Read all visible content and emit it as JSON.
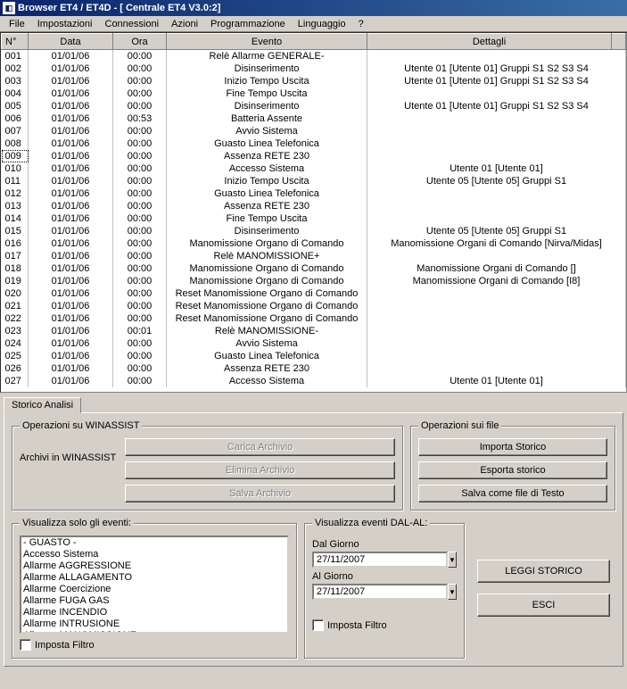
{
  "title": "Browser ET4 / ET4D - [      Centrale   ET4      V3.0:2]",
  "menu": [
    "File",
    "Impostazioni",
    "Connessioni",
    "Azioni",
    "Programmazione",
    "Linguaggio",
    "?"
  ],
  "columns": {
    "n": "N°",
    "data": "Data",
    "ora": "Ora",
    "evento": "Evento",
    "dettagli": "Dettagli"
  },
  "rows": [
    {
      "n": "001",
      "d": "01/01/06",
      "o": "00:00",
      "e": "Relè Allarme GENERALE-",
      "x": ""
    },
    {
      "n": "002",
      "d": "01/01/06",
      "o": "00:00",
      "e": "Disinserimento",
      "x": "Utente 01 [Utente      01] Gruppi S1  S2  S3  S4"
    },
    {
      "n": "003",
      "d": "01/01/06",
      "o": "00:00",
      "e": "Inizio Tempo Uscita",
      "x": "Utente 01 [Utente      01] Gruppi S1  S2  S3  S4"
    },
    {
      "n": "004",
      "d": "01/01/06",
      "o": "00:00",
      "e": "Fine Tempo Uscita",
      "x": ""
    },
    {
      "n": "005",
      "d": "01/01/06",
      "o": "00:00",
      "e": "Disinserimento",
      "x": "Utente 01 [Utente      01] Gruppi S1  S2  S3  S4"
    },
    {
      "n": "006",
      "d": "01/01/06",
      "o": "00:53",
      "e": "Batteria Assente",
      "x": ""
    },
    {
      "n": "007",
      "d": "01/01/06",
      "o": "00:00",
      "e": "Avvio Sistema",
      "x": ""
    },
    {
      "n": "008",
      "d": "01/01/06",
      "o": "00:00",
      "e": "Guasto Linea Telefonica",
      "x": ""
    },
    {
      "n": "009",
      "d": "01/01/06",
      "o": "00:00",
      "e": "Assenza RETE 230",
      "x": "",
      "dotted": true
    },
    {
      "n": "010",
      "d": "01/01/06",
      "o": "00:00",
      "e": "Accesso Sistema",
      "x": "Utente 01 [Utente      01]"
    },
    {
      "n": "011",
      "d": "01/01/06",
      "o": "00:00",
      "e": "Inizio Tempo Uscita",
      "x": "Utente 05 [Utente      05] Gruppi S1"
    },
    {
      "n": "012",
      "d": "01/01/06",
      "o": "00:00",
      "e": "Guasto Linea Telefonica",
      "x": ""
    },
    {
      "n": "013",
      "d": "01/01/06",
      "o": "00:00",
      "e": "Assenza RETE 230",
      "x": ""
    },
    {
      "n": "014",
      "d": "01/01/06",
      "o": "00:00",
      "e": "Fine Tempo Uscita",
      "x": ""
    },
    {
      "n": "015",
      "d": "01/01/06",
      "o": "00:00",
      "e": "Disinserimento",
      "x": "Utente 05 [Utente      05] Gruppi S1"
    },
    {
      "n": "016",
      "d": "01/01/06",
      "o": "00:00",
      "e": "Manomissione Organo di Comando",
      "x": "Manomissione Organi di Comando  [Nirva/Midas]"
    },
    {
      "n": "017",
      "d": "01/01/06",
      "o": "00:00",
      "e": "Relè MANOMISSIONE+",
      "x": ""
    },
    {
      "n": "018",
      "d": "01/01/06",
      "o": "00:00",
      "e": "Manomissione Organo di Comando",
      "x": "Manomissione Organi di Comando  []"
    },
    {
      "n": "019",
      "d": "01/01/06",
      "o": "00:00",
      "e": "Manomissione Organo di Comando",
      "x": "Manomissione Organi di Comando  [I8]"
    },
    {
      "n": "020",
      "d": "01/01/06",
      "o": "00:00",
      "e": "Reset Manomissione Organo di Comando",
      "x": ""
    },
    {
      "n": "021",
      "d": "01/01/06",
      "o": "00:00",
      "e": "Reset Manomissione Organo di Comando",
      "x": ""
    },
    {
      "n": "022",
      "d": "01/01/06",
      "o": "00:00",
      "e": "Reset Manomissione Organo di Comando",
      "x": ""
    },
    {
      "n": "023",
      "d": "01/01/06",
      "o": "00:01",
      "e": "Relè MANOMISSIONE-",
      "x": ""
    },
    {
      "n": "024",
      "d": "01/01/06",
      "o": "00:00",
      "e": "Avvio Sistema",
      "x": ""
    },
    {
      "n": "025",
      "d": "01/01/06",
      "o": "00:00",
      "e": "Guasto Linea Telefonica",
      "x": ""
    },
    {
      "n": "026",
      "d": "01/01/06",
      "o": "00:00",
      "e": "Assenza RETE 230",
      "x": ""
    },
    {
      "n": "027",
      "d": "01/01/06",
      "o": "00:00",
      "e": "Accesso Sistema",
      "x": "Utente 01 [Utente      01]"
    }
  ],
  "tab": "Storico Analisi",
  "ops_winassist": {
    "legend": "Operazioni su WINASSIST",
    "archivi": "Archivi in WINASSIST",
    "carica": "Carica Archivio",
    "elimina": "Elimina Archivio",
    "salva": "Salva Archivio"
  },
  "ops_file": {
    "legend": "Operazioni sui file",
    "importa": "Importa Storico",
    "esporta": "Esporta storico",
    "salva": "Salva come file di Testo"
  },
  "filter": {
    "legend": "Visualizza solo gli eventi:",
    "items": [
      "- GUASTO -",
      "Accesso Sistema",
      "Allarme AGGRESSIONE",
      "Allarme ALLAGAMENTO",
      "Allarme Coercizione",
      "Allarme FUGA GAS",
      "Allarme INCENDIO",
      "Allarme INTRUSIONE",
      "Allarme MANOMISSIONE"
    ],
    "chk": "Imposta Filtro"
  },
  "dalal": {
    "legend": "Visualizza eventi DAL-AL:",
    "dal": "Dal Giorno",
    "al": "Al Giorno",
    "date1": "27/11/2007",
    "date2": "27/11/2007",
    "chk": "Imposta Filtro"
  },
  "actions": {
    "leggi": "LEGGI STORICO",
    "esci": "ESCI"
  }
}
